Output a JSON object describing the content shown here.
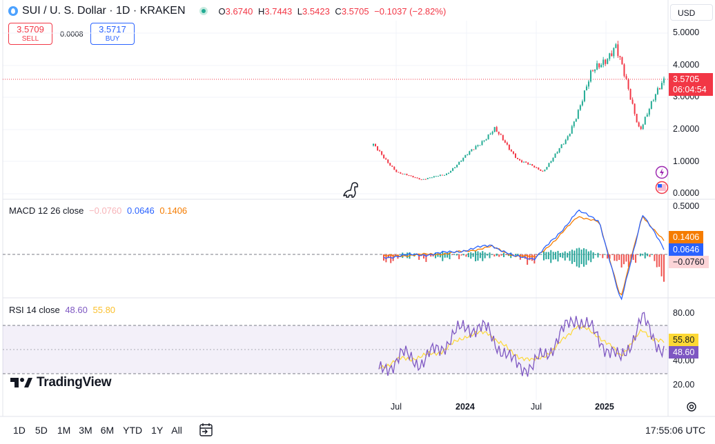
{
  "header": {
    "symbol": "SUI / U. S. Dollar · 1D · KRAKEN",
    "ohlc": [
      {
        "k": "O",
        "v": "3.6740"
      },
      {
        "k": "H",
        "v": "3.7443"
      },
      {
        "k": "L",
        "v": "3.5423"
      },
      {
        "k": "C",
        "v": "3.5705"
      }
    ],
    "change": "−0.1037 (−2.82%)",
    "currency": "USD"
  },
  "trade": {
    "sell_price": "3.5709",
    "sell_label": "SELL",
    "spread": "0.0008",
    "buy_price": "3.5717",
    "buy_label": "BUY"
  },
  "price_axis": {
    "ticks": [
      "5.0000",
      "4.0000",
      "3.0000",
      "2.0000",
      "1.0000",
      "0.0000"
    ],
    "last_price": "3.5705",
    "countdown": "06:04:54"
  },
  "macd": {
    "title": "MACD 12 26 close",
    "hist": "−0.0760",
    "macd": "0.0646",
    "signal": "0.1406",
    "axis_top": "0.5000",
    "tag_signal": "0.1406",
    "tag_macd": "0.0646",
    "tag_hist": "−0.0760"
  },
  "rsi": {
    "title": "RSI 14 close",
    "rsi": "48.60",
    "ma": "55.80",
    "ticks": [
      "80.00",
      "40.00",
      "20.00"
    ],
    "tag_ma": "55.80",
    "tag_rsi": "48.60"
  },
  "time_axis": {
    "labels": [
      "Jul",
      "2024",
      "Jul",
      "2025"
    ]
  },
  "footer": {
    "timeframes": [
      "1D",
      "5D",
      "1M",
      "3M",
      "6M",
      "YTD",
      "1Y",
      "All"
    ],
    "clock": "17:55:06 UTC"
  },
  "branding": "TradingView",
  "colors": {
    "up": "#22ab94",
    "down": "#f23645",
    "macd": "#2962ff",
    "signal": "#f57c00",
    "rsi": "#7e57c2",
    "rsi_ma": "#fdd835"
  },
  "chart_data": [
    {
      "type": "candlestick",
      "series": [
        {
          "name": "SUI / U. S. Dollar",
          "x": [
            "2023-05",
            "2023-07",
            "2023-09",
            "2023-11",
            "2024-01",
            "2024-03",
            "2024-05",
            "2024-07",
            "2024-09",
            "2024-11",
            "2025-01",
            "2025-02",
            "2025-03"
          ],
          "y": [
            1.5,
            0.65,
            0.45,
            0.6,
            1.3,
            2.0,
            1.05,
            0.7,
            1.7,
            3.7,
            4.6,
            2.0,
            3.57
          ]
        }
      ]
    },
    {
      "type": "line",
      "series": [
        {
          "name": "MACD",
          "values": [
            -0.03,
            -0.01,
            0.0,
            0.02,
            0.05,
            0.1,
            -0.02,
            -0.04,
            0.18,
            0.45,
            0.35,
            -0.5,
            0.42,
            0.06
          ]
        },
        {
          "name": "signal",
          "values": [
            -0.02,
            -0.01,
            0.0,
            0.01,
            0.04,
            0.08,
            -0.01,
            -0.03,
            0.15,
            0.4,
            0.33,
            -0.45,
            0.4,
            0.14
          ]
        }
      ]
    },
    {
      "type": "line",
      "ylim": [
        20,
        80
      ],
      "series": [
        {
          "name": "RSI",
          "values": [
            30,
            45,
            40,
            55,
            70,
            65,
            40,
            35,
            55,
            78,
            60,
            40,
            75,
            48.6
          ]
        },
        {
          "name": "RSI-based MA",
          "values": [
            35,
            42,
            44,
            50,
            62,
            64,
            48,
            40,
            50,
            70,
            62,
            45,
            65,
            55.8
          ]
        }
      ]
    }
  ]
}
